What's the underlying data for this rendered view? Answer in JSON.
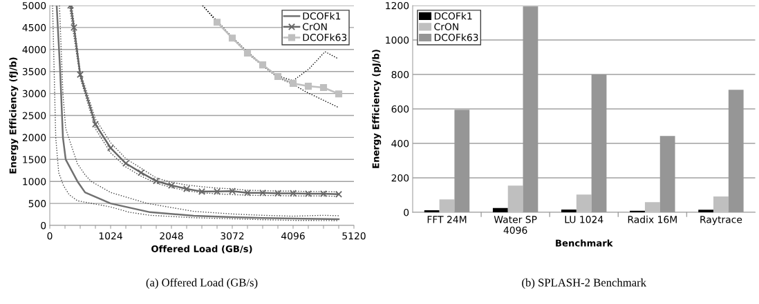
{
  "chart_data": [
    {
      "type": "line",
      "xlabel": "Offered Load (GB/s)",
      "ylabel": "Energy Efficiency (fJ/b)",
      "xlim": [
        0,
        5120
      ],
      "ylim": [
        0,
        5000
      ],
      "xticks": [
        0,
        {
          "value": 256,
          "label": null
        },
        {
          "value": 512,
          "label": null
        },
        {
          "value": 768,
          "label": null
        },
        1024,
        {
          "value": 1280,
          "label": null
        },
        {
          "value": 1536,
          "label": null
        },
        {
          "value": 1792,
          "label": null
        },
        2048,
        {
          "value": 2304,
          "label": null
        },
        {
          "value": 2560,
          "label": null
        },
        {
          "value": 2816,
          "label": null
        },
        3072,
        {
          "value": 3328,
          "label": null
        },
        {
          "value": 3584,
          "label": null
        },
        {
          "value": 3840,
          "label": null
        },
        4096,
        {
          "value": 4352,
          "label": null
        },
        {
          "value": 4608,
          "label": null
        },
        {
          "value": 4864,
          "label": null
        },
        5120
      ],
      "yticks": [
        0,
        500,
        1000,
        1500,
        2000,
        2500,
        3000,
        3500,
        4000,
        4500,
        5000
      ],
      "grid": "y",
      "legend": "top right",
      "annotations": [
        "(a) Offered Load (GB/s)"
      ],
      "series": [
        {
          "color": "#404040",
          "line_style": "dotted",
          "marker": "none",
          "x": [
            47,
            100,
            150,
            233,
            326,
            466,
            710,
            1024,
            1338,
            1688,
            2421,
            3072,
            3584,
            4096,
            4864
          ],
          "values": [
            5000,
            2000,
            1200,
            900,
            700,
            560,
            500,
            420,
            300,
            230,
            175,
            150,
            130,
            115,
            110
          ]
        },
        {
          "color": "#404040",
          "line_style": "dotted",
          "marker": "none",
          "x": [
            163,
            221,
            268,
            466,
            594,
            698,
            1024,
            1641,
            2421,
            3072,
            3584,
            4096,
            4608,
            4864
          ],
          "values": [
            5000,
            3000,
            2200,
            1400,
            1150,
            1000,
            750,
            500,
            320,
            260,
            230,
            210,
            230,
            220
          ]
        },
        {
          "color": "#404040",
          "line_style": "dotted",
          "marker": "none",
          "x": [
            330,
            400,
            512,
            768,
            1024,
            1280,
            1536,
            1792,
            2048,
            2304,
            2560,
            2816,
            3072,
            3328,
            3584,
            3840,
            4096,
            4352,
            4608,
            4864
          ],
          "values": [
            5000,
            4350,
            3350,
            2200,
            1650,
            1330,
            1120,
            960,
            860,
            790,
            740,
            720,
            700,
            690,
            680,
            680,
            670,
            670,
            670,
            660
          ]
        },
        {
          "color": "#404040",
          "line_style": "dotted",
          "marker": "none",
          "x": [
            370,
            420,
            512,
            768,
            1024,
            1280,
            1536,
            1792,
            2048,
            2304,
            2560,
            2816,
            3072,
            3328,
            3584,
            3840,
            4096,
            4352,
            4608,
            4864
          ],
          "values": [
            5000,
            4500,
            3500,
            2420,
            1880,
            1520,
            1300,
            1080,
            980,
            920,
            880,
            850,
            830,
            800,
            790,
            780,
            780,
            770,
            770,
            760
          ]
        },
        {
          "color": "#000000",
          "line_style": "dotted",
          "marker": "none",
          "x": [
            2572,
            2816,
            3072,
            3328,
            3584,
            3840,
            4096,
            4365,
            4633,
            4854
          ],
          "values": [
            5000,
            4650,
            4280,
            3950,
            3650,
            3400,
            3290,
            3560,
            3950,
            3790
          ]
        },
        {
          "color": "#000000",
          "line_style": "dotted",
          "marker": "none",
          "x": [
            2572,
            2816,
            3072,
            3328,
            3584,
            3840,
            4096,
            4307,
            4864
          ],
          "values": [
            5000,
            4620,
            4250,
            3910,
            3630,
            3360,
            3210,
            3040,
            2680
          ]
        },
        {
          "name": "DCOFk1",
          "color": "#707070",
          "line_style": "solid",
          "marker": "none",
          "x": [
            116,
            175,
            221,
            268,
            466,
            594,
            1024,
            1688,
            2421,
            3072,
            3584,
            4096,
            4864
          ],
          "values": [
            5000,
            3500,
            2000,
            1500,
            1000,
            750,
            500,
            300,
            220,
            190,
            170,
            155,
            140
          ]
        },
        {
          "name": "CrON",
          "color": "#666666",
          "line_style": "solid",
          "marker": "cross",
          "x": [
            350,
            407,
            512,
            768,
            1024,
            1280,
            1536,
            1792,
            2048,
            2304,
            2560,
            2816,
            3072,
            3328,
            3584,
            3840,
            4096,
            4352,
            4608,
            4864
          ],
          "values": [
            5000,
            4500,
            3430,
            2300,
            1760,
            1410,
            1200,
            1010,
            910,
            830,
            770,
            770,
            780,
            740,
            740,
            730,
            730,
            720,
            720,
            710
          ]
        },
        {
          "name": "DCOFk63",
          "color": "#bfbfbf",
          "line_style": "solid",
          "marker": "square",
          "x": [
            2816,
            3072,
            3328,
            3584,
            3840,
            4096,
            4352,
            4608,
            4864
          ],
          "values": [
            4620,
            4260,
            3920,
            3650,
            3385,
            3230,
            3165,
            3135,
            2990
          ]
        }
      ]
    },
    {
      "type": "bar",
      "xlabel": "Benchmark",
      "ylabel": "Energy Efficiency (pJ/b)",
      "categories": [
        "FFT 24M",
        "Water SP\n4096",
        "LU 1024",
        "Radix 16M",
        "Raytrace"
      ],
      "ylim": [
        0,
        1200
      ],
      "yticks": [
        0,
        200,
        400,
        600,
        800,
        1000,
        1200
      ],
      "grid": "y",
      "legend": "top left",
      "annotations": [
        "(b) SPLASH-2 Benchmark"
      ],
      "series": [
        {
          "name": "DCOFk1",
          "color": "#000000",
          "values": [
            12,
            25,
            16,
            9,
            15
          ]
        },
        {
          "name": "CrON",
          "color": "#bfbfbf",
          "values": [
            75,
            155,
            103,
            59,
            92
          ]
        },
        {
          "name": "DCOFk63",
          "color": "#969696",
          "values": [
            595,
            1195,
            800,
            443,
            711
          ]
        }
      ]
    }
  ]
}
